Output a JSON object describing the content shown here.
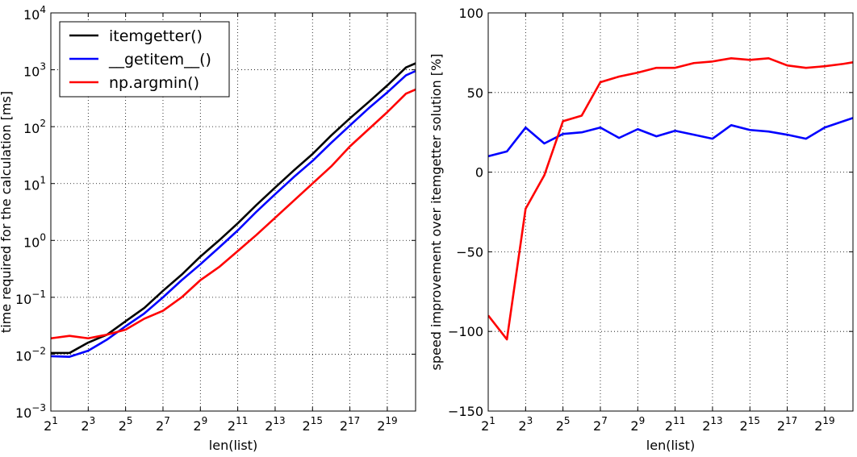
{
  "chart_data": [
    {
      "type": "line",
      "xlabel": "len(list)",
      "ylabel": "time required for the calculation [ms]",
      "xscale": "log2",
      "yscale": "log10",
      "xlim": [
        2,
        1497728
      ],
      "ylim": [
        0.001,
        10000
      ],
      "grid": true,
      "legend_position": "top-left",
      "x_ticks": [
        2,
        8,
        32,
        128,
        512,
        2048,
        8192,
        32768,
        131072,
        524288
      ],
      "x_tick_labels": [
        {
          "base": "2",
          "exp": "1"
        },
        {
          "base": "2",
          "exp": "3"
        },
        {
          "base": "2",
          "exp": "5"
        },
        {
          "base": "2",
          "exp": "7"
        },
        {
          "base": "2",
          "exp": "9"
        },
        {
          "base": "2",
          "exp": "11"
        },
        {
          "base": "2",
          "exp": "13"
        },
        {
          "base": "2",
          "exp": "15"
        },
        {
          "base": "2",
          "exp": "17"
        },
        {
          "base": "2",
          "exp": "19"
        }
      ],
      "y_ticks": [
        0.001,
        0.01,
        0.1,
        1,
        10,
        100,
        1000,
        10000
      ],
      "y_tick_labels": [
        {
          "base": "10",
          "exp": "−3"
        },
        {
          "base": "10",
          "exp": "−2"
        },
        {
          "base": "10",
          "exp": "−1"
        },
        {
          "base": "10",
          "exp": "0"
        },
        {
          "base": "10",
          "exp": "1"
        },
        {
          "base": "10",
          "exp": "2"
        },
        {
          "base": "10",
          "exp": "3"
        },
        {
          "base": "10",
          "exp": "4"
        }
      ],
      "x": [
        2,
        4,
        8,
        16,
        32,
        64,
        128,
        256,
        512,
        1024,
        2048,
        4096,
        8192,
        16384,
        32768,
        65536,
        131072,
        262144,
        524288,
        1048576,
        1497728
      ],
      "series": [
        {
          "name": "itemgetter()",
          "color": "#000000",
          "values": [
            0.0105,
            0.0105,
            0.016,
            0.022,
            0.038,
            0.065,
            0.13,
            0.25,
            0.52,
            1.0,
            2.0,
            4.2,
            8.5,
            17,
            33,
            70,
            140,
            270,
            530,
            1100,
            1300
          ]
        },
        {
          "name": "__getitem__()",
          "color": "#0000ff",
          "values": [
            0.0092,
            0.009,
            0.0115,
            0.018,
            0.031,
            0.052,
            0.1,
            0.2,
            0.38,
            0.75,
            1.5,
            3.2,
            6.5,
            13,
            25,
            52,
            105,
            210,
            400,
            800,
            950
          ]
        },
        {
          "name": "np.argmin()",
          "color": "#ff0000",
          "values": [
            0.019,
            0.021,
            0.019,
            0.022,
            0.027,
            0.042,
            0.058,
            0.1,
            0.2,
            0.34,
            0.65,
            1.25,
            2.5,
            5,
            10,
            20,
            45,
            90,
            180,
            380,
            450
          ]
        }
      ]
    },
    {
      "type": "line",
      "xlabel": "len(list)",
      "ylabel": "speed improvement over itemgetter solution [%]",
      "xscale": "log2",
      "yscale": "linear",
      "xlim": [
        2,
        1497728
      ],
      "ylim": [
        -150,
        100
      ],
      "grid": true,
      "x_ticks": [
        2,
        8,
        32,
        128,
        512,
        2048,
        8192,
        32768,
        131072,
        524288
      ],
      "x_tick_labels": [
        {
          "base": "2",
          "exp": "1"
        },
        {
          "base": "2",
          "exp": "3"
        },
        {
          "base": "2",
          "exp": "5"
        },
        {
          "base": "2",
          "exp": "7"
        },
        {
          "base": "2",
          "exp": "9"
        },
        {
          "base": "2",
          "exp": "11"
        },
        {
          "base": "2",
          "exp": "13"
        },
        {
          "base": "2",
          "exp": "15"
        },
        {
          "base": "2",
          "exp": "17"
        },
        {
          "base": "2",
          "exp": "19"
        }
      ],
      "y_ticks": [
        -150,
        -100,
        -50,
        0,
        50,
        100
      ],
      "y_tick_labels": [
        "−150",
        "−100",
        "−50",
        "0",
        "50",
        "100"
      ],
      "x": [
        2,
        4,
        8,
        16,
        32,
        64,
        128,
        256,
        512,
        1024,
        2048,
        4096,
        8192,
        16384,
        32768,
        65536,
        131072,
        262144,
        524288,
        1048576,
        1497728
      ],
      "series": [
        {
          "name": "__getitem__()",
          "color": "#0000ff",
          "values": [
            10,
            13,
            28,
            18,
            24,
            25,
            28,
            21.5,
            27,
            22.5,
            26,
            23.5,
            21,
            29.5,
            26.5,
            25.5,
            23.5,
            21,
            28,
            32,
            34
          ]
        },
        {
          "name": "np.argmin()",
          "color": "#ff0000",
          "values": [
            -90,
            -105,
            -23,
            -2,
            32,
            35.5,
            56.5,
            60,
            62.5,
            65.5,
            65.5,
            68.5,
            69.5,
            71.5,
            70.5,
            71.5,
            67,
            65.5,
            66.5,
            68,
            69
          ]
        }
      ]
    }
  ]
}
